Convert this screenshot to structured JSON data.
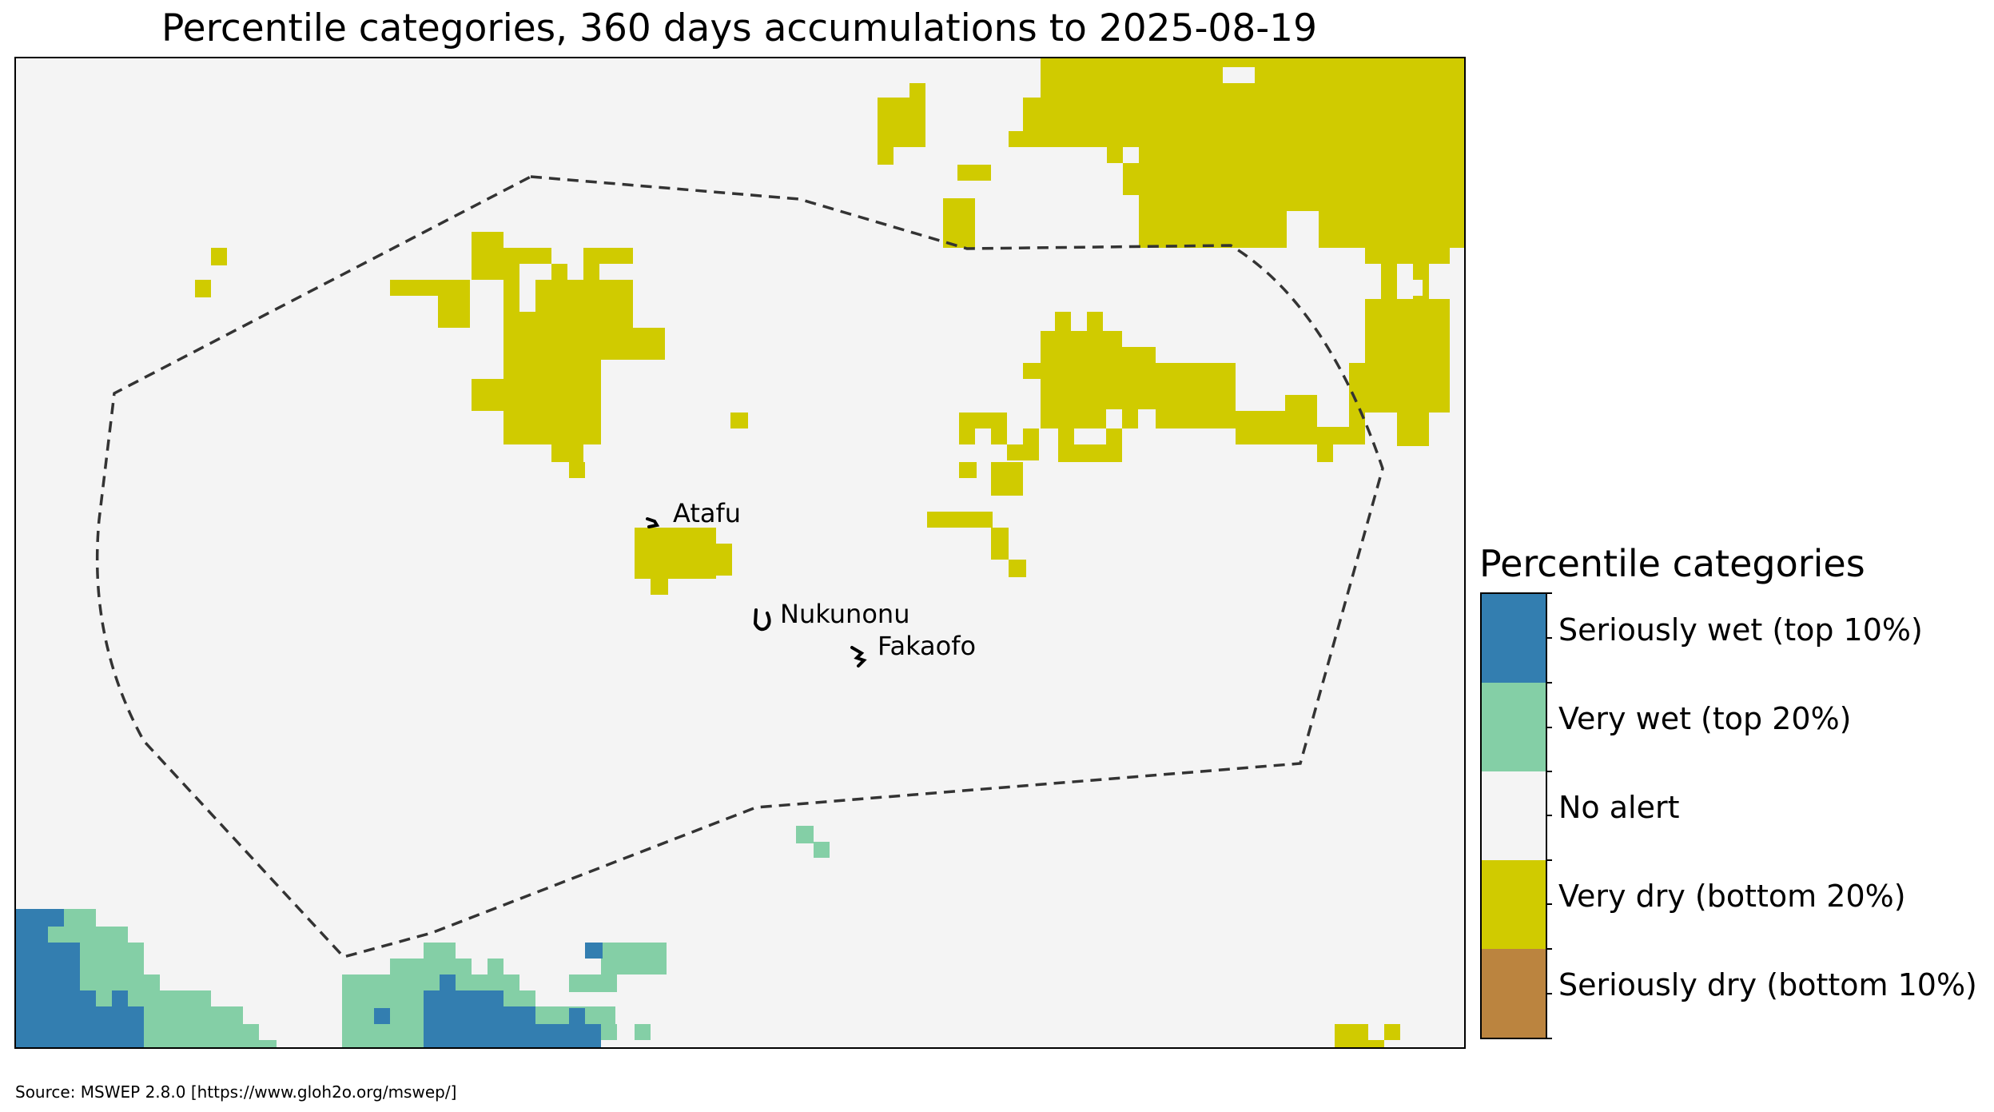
{
  "title": "Percentile categories, 360 days accumulations to 2025-08-19",
  "source": "Source: MSWEP 2.8.0 [https://www.gloh2o.org/mswep/]",
  "legend": {
    "title": "Percentile categories",
    "items": [
      {
        "label": "Seriously wet (top 10%)",
        "color": "#337eb0"
      },
      {
        "label": "Very wet (top 20%)",
        "color": "#84cfa6"
      },
      {
        "label": "No alert",
        "color": "#f4f4f4"
      },
      {
        "label": "Very dry (bottom 20%)",
        "color": "#d0cb00"
      },
      {
        "label": "Seriously dry (bottom 10%)",
        "color": "#bb843f"
      }
    ]
  },
  "places": [
    {
      "name": "Atafu"
    },
    {
      "name": "Nukunonu"
    },
    {
      "name": "Fakaofo"
    }
  ],
  "colors": {
    "background": "#f4f4f4",
    "boundary": "#333333"
  }
}
